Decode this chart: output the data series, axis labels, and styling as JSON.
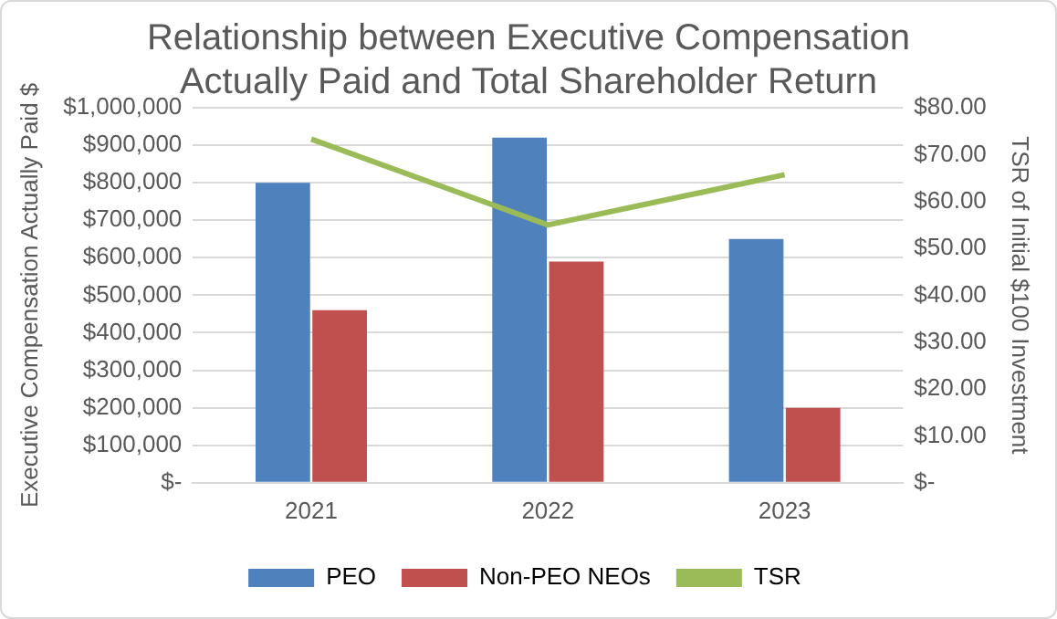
{
  "chart_data": {
    "type": "bar",
    "title": "Relationship between Executive Compensation Actually Paid and Total Shareholder Return",
    "ylabel": "Executive Compensation Actually Paid $",
    "y2label": "TSR of Initial $100 Investment",
    "categories": [
      "2021",
      "2022",
      "2023"
    ],
    "series": [
      {
        "name": "PEO",
        "color": "#4f81bd",
        "values": [
          800000,
          920000,
          650000
        ]
      },
      {
        "name": "Non-PEO NEOs",
        "color": "#c0504d",
        "values": [
          460000,
          590000,
          200000
        ]
      },
      {
        "name": "TSR",
        "type": "line",
        "axis": "y2",
        "color": "#9bbb59",
        "values": [
          73.3,
          55,
          65.7
        ]
      }
    ],
    "ylim": [
      0,
      1000000
    ],
    "yticks": [
      {
        "value": 0,
        "label": "$-"
      },
      {
        "value": 100000,
        "label": "$100,000"
      },
      {
        "value": 200000,
        "label": "$200,000"
      },
      {
        "value": 300000,
        "label": "$300,000"
      },
      {
        "value": 400000,
        "label": "$400,000"
      },
      {
        "value": 500000,
        "label": "$500,000"
      },
      {
        "value": 600000,
        "label": "$600,000"
      },
      {
        "value": 700000,
        "label": "$700,000"
      },
      {
        "value": 800000,
        "label": "$800,000"
      },
      {
        "value": 900000,
        "label": "$900,000"
      },
      {
        "value": 1000000,
        "label": "$1,000,000"
      }
    ],
    "y2lim": [
      0,
      80
    ],
    "y2ticks": [
      {
        "value": 0,
        "label": "$-"
      },
      {
        "value": 10,
        "label": "$10.00"
      },
      {
        "value": 20,
        "label": "$20.00"
      },
      {
        "value": 30,
        "label": "$30.00"
      },
      {
        "value": 40,
        "label": "$40.00"
      },
      {
        "value": 50,
        "label": "$50.00"
      },
      {
        "value": 60,
        "label": "$60.00"
      },
      {
        "value": 70,
        "label": "$70.00"
      },
      {
        "value": 80,
        "label": "$80.00"
      }
    ],
    "grid": "y",
    "legend": "bottom",
    "marker": "none"
  }
}
